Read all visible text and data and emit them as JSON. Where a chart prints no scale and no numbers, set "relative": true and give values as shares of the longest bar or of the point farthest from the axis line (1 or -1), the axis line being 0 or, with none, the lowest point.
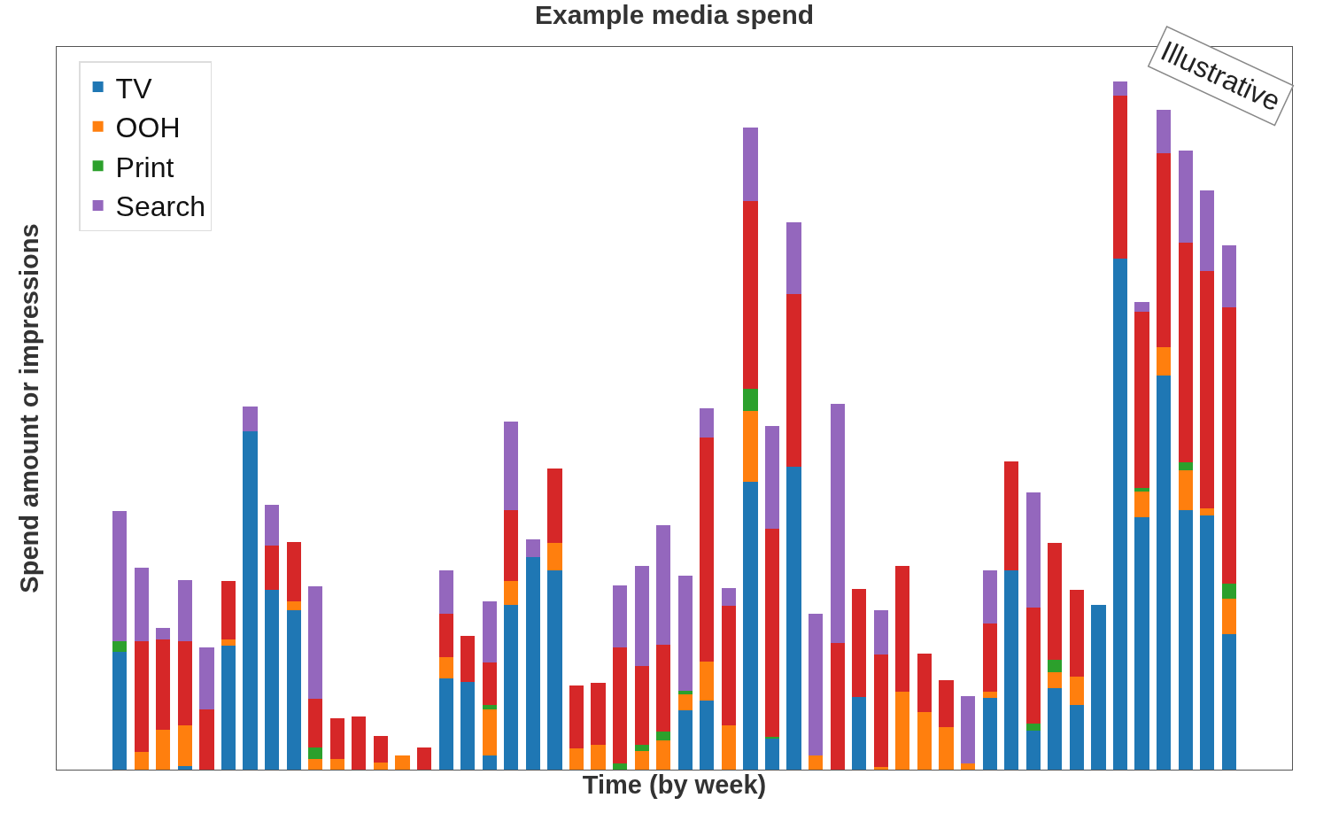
{
  "chart_data": {
    "type": "bar",
    "title": "Example media spend",
    "xlabel": "Time (by week)",
    "ylabel": "Spend amount or impressions",
    "relative": true,
    "stacked": true,
    "legend": "top left",
    "grid": false,
    "annotations": [
      "Illustrative"
    ],
    "categories": [
      null,
      null,
      null,
      null,
      null,
      null,
      null,
      null,
      null,
      null,
      null,
      null,
      null,
      null,
      null,
      null,
      null,
      null,
      null,
      null,
      null,
      null,
      null,
      null,
      null,
      null,
      null,
      null,
      null,
      null,
      null,
      null,
      null,
      null,
      null,
      null,
      null,
      null,
      null,
      null,
      null,
      null,
      null,
      null,
      null,
      null,
      null,
      null,
      null,
      null,
      null,
      null
    ],
    "series": [
      {
        "name": "TV",
        "color": "#1f77b4",
        "values": [
          0.171,
          null,
          null,
          0.005,
          null,
          0.18,
          0.492,
          0.261,
          0.232,
          null,
          null,
          null,
          null,
          null,
          null,
          0.133,
          0.127,
          0.021,
          0.239,
          0.309,
          0.29,
          null,
          null,
          null,
          null,
          null,
          0.086,
          0.1,
          null,
          0.418,
          0.045,
          0.44,
          null,
          null,
          0.106,
          null,
          null,
          null,
          null,
          null,
          0.104,
          0.29,
          0.057,
          0.118,
          0.094,
          0.239,
          0.743,
          0.367,
          0.573,
          0.377,
          0.369,
          0.197
        ]
      },
      {
        "name": "OOH",
        "color": "#ff7f0e",
        "values": [
          null,
          0.026,
          0.058,
          0.059,
          null,
          0.009,
          null,
          null,
          0.013,
          0.015,
          0.015,
          null,
          0.01,
          0.021,
          null,
          0.03,
          null,
          0.067,
          0.035,
          null,
          0.039,
          0.031,
          0.036,
          null,
          0.027,
          0.042,
          0.024,
          0.057,
          0.064,
          0.103,
          null,
          null,
          0.021,
          null,
          null,
          0.004,
          0.113,
          0.084,
          0.062,
          0.009,
          0.009,
          null,
          null,
          0.023,
          0.041,
          null,
          null,
          0.037,
          0.041,
          0.058,
          0.01,
          0.051
        ]
      },
      {
        "name": "Print",
        "color": "#2ca02c",
        "values": [
          0.015,
          null,
          null,
          null,
          null,
          null,
          null,
          null,
          null,
          0.017,
          null,
          null,
          null,
          null,
          null,
          null,
          null,
          0.006,
          null,
          null,
          null,
          null,
          null,
          0.009,
          0.009,
          0.013,
          0.005,
          null,
          null,
          0.032,
          0.003,
          null,
          null,
          null,
          null,
          null,
          null,
          null,
          null,
          null,
          null,
          null,
          0.01,
          0.018,
          null,
          null,
          null,
          0.005,
          null,
          0.012,
          null,
          0.022
        ]
      },
      {
        "color": "#d62728",
        "values": [
          null,
          0.161,
          0.131,
          0.122,
          0.088,
          0.085,
          null,
          0.064,
          0.086,
          0.071,
          0.059,
          0.077,
          0.039,
          null,
          0.032,
          0.063,
          0.067,
          0.062,
          0.103,
          null,
          0.109,
          0.091,
          0.09,
          0.169,
          0.115,
          0.126,
          null,
          0.326,
          0.174,
          0.273,
          0.302,
          0.251,
          null,
          0.184,
          0.156,
          0.163,
          0.183,
          0.085,
          0.068,
          null,
          0.099,
          0.158,
          0.169,
          0.171,
          0.126,
          null,
          0.236,
          0.256,
          0.282,
          0.318,
          0.345,
          0.402
        ]
      },
      {
        "name": "Search",
        "color": "#9467bd",
        "values": [
          0.19,
          0.107,
          0.017,
          0.09,
          0.09,
          null,
          0.036,
          0.06,
          null,
          0.163,
          null,
          null,
          null,
          null,
          null,
          0.064,
          null,
          0.089,
          0.129,
          0.026,
          null,
          null,
          null,
          0.09,
          0.145,
          0.174,
          0.167,
          0.042,
          0.026,
          0.107,
          0.149,
          0.104,
          0.206,
          0.347,
          null,
          0.064,
          null,
          null,
          null,
          0.098,
          0.077,
          null,
          0.167,
          null,
          null,
          null,
          0.021,
          0.015,
          0.063,
          0.134,
          0.118,
          0.09
        ]
      }
    ]
  }
}
